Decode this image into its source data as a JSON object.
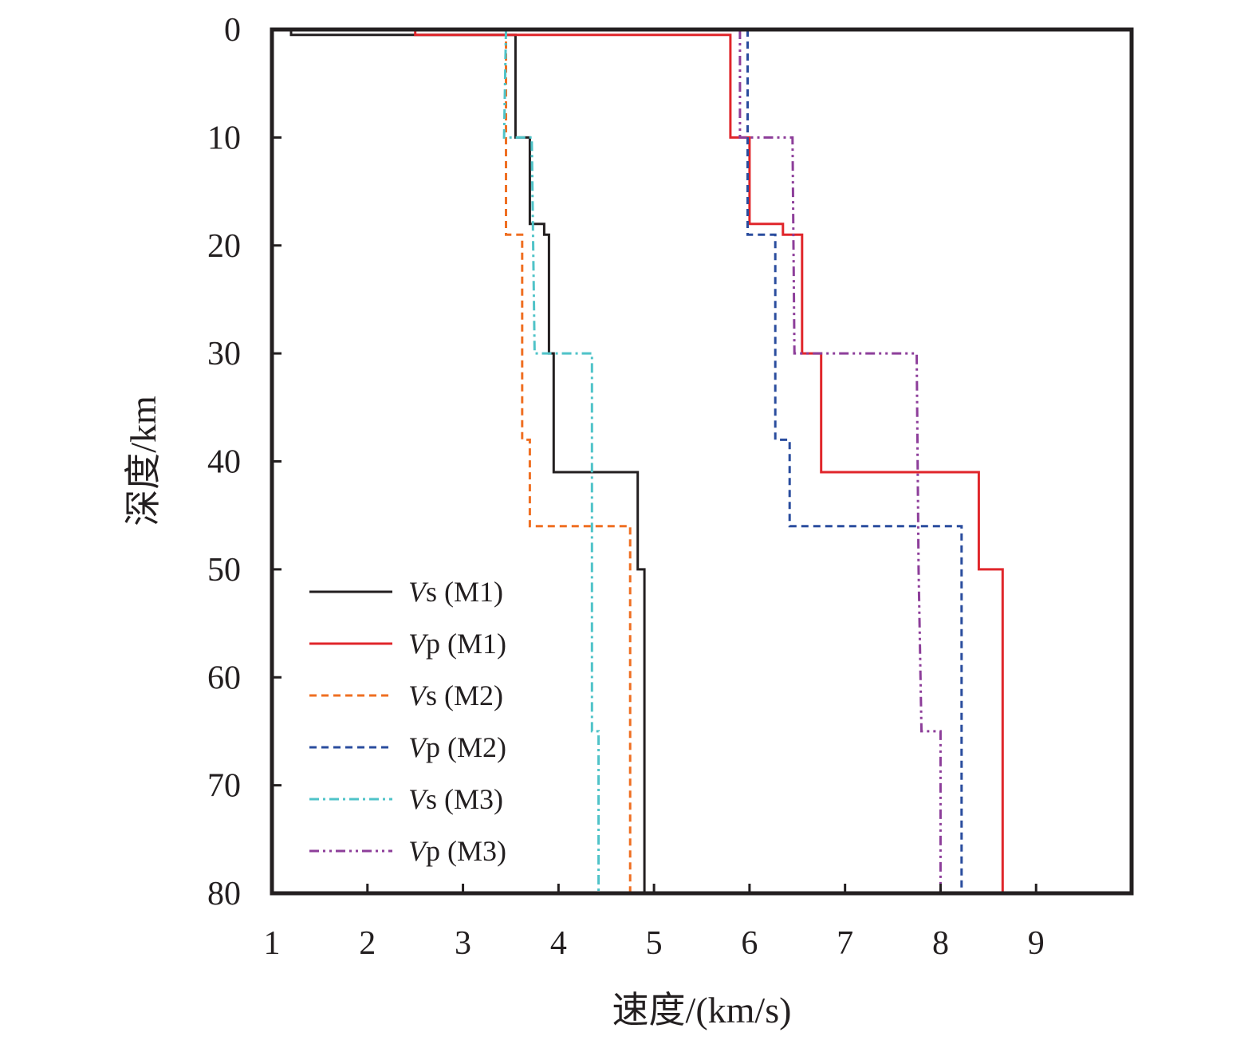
{
  "chart_data": {
    "type": "line",
    "xlabel": "速度/(km/s)",
    "ylabel": "深度/km",
    "xlim": [
      1,
      10
    ],
    "ylim": [
      0,
      80
    ],
    "y_inverted": true,
    "x_ticks": [
      1,
      2,
      3,
      4,
      5,
      6,
      7,
      8,
      9
    ],
    "y_ticks": [
      0,
      10,
      20,
      30,
      40,
      50,
      60,
      70,
      80
    ],
    "grid": false,
    "legend_position": "bottom-left",
    "series": [
      {
        "name": "Vs (M1)",
        "name_italic": "V",
        "name_rest": "s (M1)",
        "color": "#231f20",
        "dash": "solid",
        "points": [
          [
            1.2,
            0
          ],
          [
            1.2,
            0.5
          ],
          [
            3.55,
            0.5
          ],
          [
            3.55,
            10
          ],
          [
            3.7,
            10
          ],
          [
            3.7,
            18
          ],
          [
            3.85,
            18
          ],
          [
            3.85,
            19
          ],
          [
            3.9,
            19
          ],
          [
            3.9,
            30
          ],
          [
            3.95,
            30
          ],
          [
            3.95,
            41
          ],
          [
            4.83,
            41
          ],
          [
            4.83,
            50
          ],
          [
            4.9,
            50
          ],
          [
            4.9,
            80
          ]
        ]
      },
      {
        "name": "Vp (M1)",
        "name_italic": "V",
        "name_rest": "p (M1)",
        "color": "#e0262b",
        "dash": "solid",
        "points": [
          [
            2.5,
            0
          ],
          [
            2.5,
            0.5
          ],
          [
            5.8,
            0.5
          ],
          [
            5.8,
            10
          ],
          [
            6.0,
            10
          ],
          [
            6.0,
            18
          ],
          [
            6.35,
            18
          ],
          [
            6.35,
            19
          ],
          [
            6.55,
            19
          ],
          [
            6.55,
            30
          ],
          [
            6.75,
            30
          ],
          [
            6.75,
            41
          ],
          [
            8.4,
            41
          ],
          [
            8.4,
            50
          ],
          [
            8.65,
            50
          ],
          [
            8.65,
            80
          ]
        ]
      },
      {
        "name": "Vs (M2)",
        "name_italic": "V",
        "name_rest": "s (M2)",
        "color": "#ef6f22",
        "dash": "dashed",
        "points": [
          [
            3.45,
            0
          ],
          [
            3.45,
            19
          ],
          [
            3.62,
            19
          ],
          [
            3.62,
            38
          ],
          [
            3.7,
            38
          ],
          [
            3.7,
            46
          ],
          [
            4.75,
            46
          ],
          [
            4.75,
            80
          ]
        ]
      },
      {
        "name": "Vp (M2)",
        "name_italic": "V",
        "name_rest": "p (M2)",
        "color": "#2a4d9e",
        "dash": "dashed",
        "points": [
          [
            5.98,
            0
          ],
          [
            5.98,
            19
          ],
          [
            6.27,
            19
          ],
          [
            6.27,
            38
          ],
          [
            6.42,
            38
          ],
          [
            6.42,
            46
          ],
          [
            8.22,
            46
          ],
          [
            8.22,
            80
          ]
        ]
      },
      {
        "name": "Vs (M3)",
        "name_italic": "V",
        "name_rest": "s (M3)",
        "color": "#4fc3c8",
        "dash": "dashdot",
        "points": [
          [
            3.45,
            0
          ],
          [
            3.43,
            10
          ],
          [
            3.72,
            10
          ],
          [
            3.75,
            30
          ],
          [
            4.35,
            30
          ],
          [
            4.35,
            65
          ],
          [
            4.42,
            65
          ],
          [
            4.42,
            80
          ]
        ]
      },
      {
        "name": "Vp (M3)",
        "name_italic": "V",
        "name_rest": "p (M3)",
        "color": "#8d3e9a",
        "dash": "dashdotdot",
        "points": [
          [
            5.9,
            0
          ],
          [
            5.9,
            10
          ],
          [
            6.45,
            10
          ],
          [
            6.47,
            30
          ],
          [
            7.75,
            30
          ],
          [
            7.77,
            50
          ],
          [
            7.8,
            65
          ],
          [
            8.0,
            65
          ],
          [
            8.0,
            80
          ]
        ]
      }
    ]
  }
}
